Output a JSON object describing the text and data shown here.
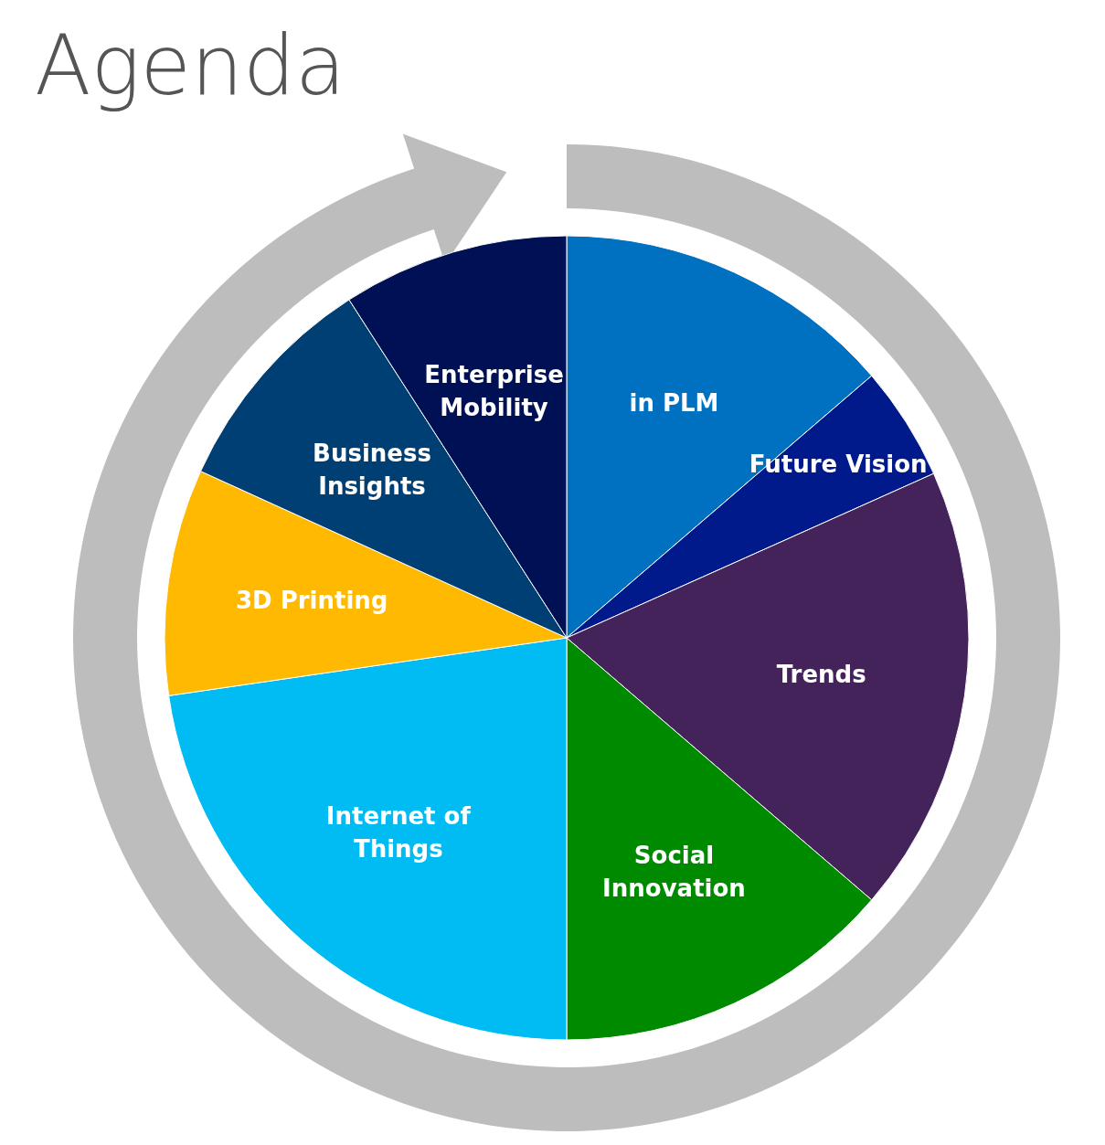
{
  "chart_data": {
    "type": "pie",
    "title": "Agenda",
    "categories": [
      "in PLM",
      "Future Vision",
      "Trends",
      "Social Innovation",
      "Internet of Things",
      "3D Printing",
      "Business Insights",
      "Enterprise Mobility"
    ],
    "values": [
      13.7,
      4.6,
      18.0,
      13.7,
      22.7,
      9.1,
      9.1,
      9.1
    ],
    "colors": [
      "#0070c0",
      "#001a8c",
      "#44235a",
      "#008a00",
      "#00bcf2",
      "#ffb900",
      "#003f74",
      "#001055"
    ]
  }
}
